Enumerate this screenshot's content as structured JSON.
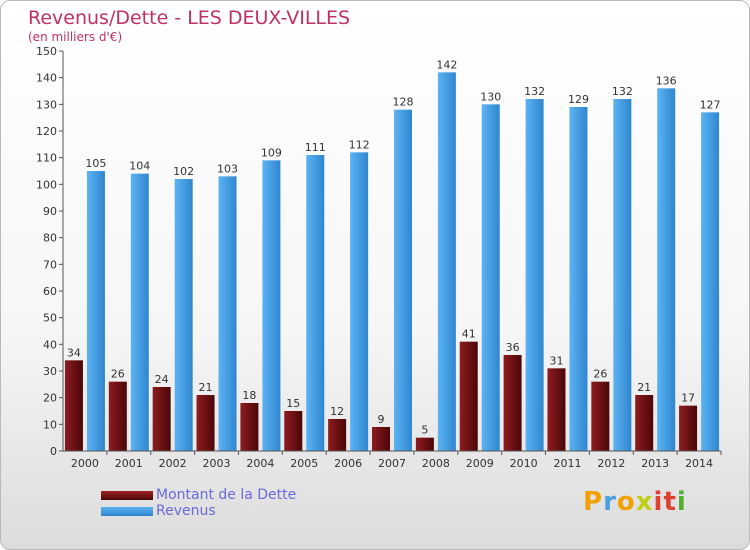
{
  "chart_data": {
    "type": "bar",
    "title": "Revenus/Dette - LES DEUX-VILLES",
    "subtitle": "(en milliers d'€)",
    "categories": [
      "2000",
      "2001",
      "2002",
      "2003",
      "2004",
      "2005",
      "2006",
      "2007",
      "2008",
      "2009",
      "2010",
      "2011",
      "2012",
      "2013",
      "2014"
    ],
    "series": [
      {
        "name": "Montant de la Dette",
        "color": "#7a0f12",
        "values": [
          34,
          26,
          24,
          21,
          18,
          15,
          12,
          9,
          5,
          41,
          36,
          31,
          26,
          21,
          17
        ]
      },
      {
        "name": "Revenus",
        "color": "#4ca3e4",
        "values": [
          105,
          104,
          102,
          103,
          109,
          111,
          112,
          128,
          142,
          130,
          132,
          129,
          132,
          136,
          127
        ]
      }
    ],
    "ylim": [
      0,
      150
    ],
    "ytick_step": 10,
    "grid": false,
    "data_labels": true,
    "legend_position": "bottom-left"
  },
  "logo": {
    "letters": [
      "P",
      "r",
      "o",
      "x",
      "i",
      "t",
      "i"
    ],
    "colors": [
      "#f0a000",
      "#4aa0e0",
      "#f0a000",
      "#c0d010",
      "#e04030",
      "#e04030",
      "#50b030"
    ]
  }
}
